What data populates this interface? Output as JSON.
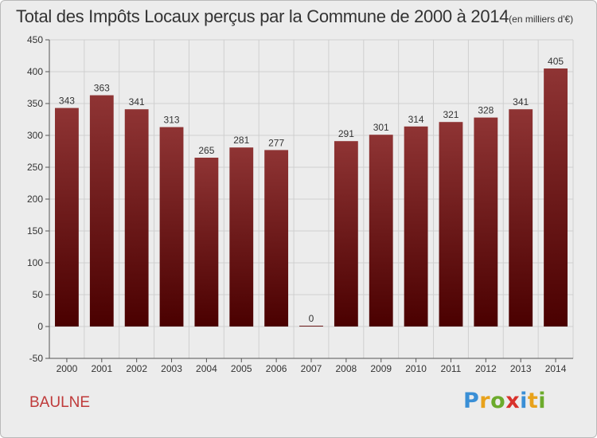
{
  "title": {
    "main": "Total des Impôts Locaux perçus par la Commune de 2000 à 2014",
    "unit": "(en milliers d'€)"
  },
  "commune": "BAULNE",
  "logo": {
    "letters": [
      {
        "ch": "P",
        "color": "#3a8fd6"
      },
      {
        "ch": "r",
        "color": "#e8a21b"
      },
      {
        "ch": "o",
        "color": "#6cab2c"
      },
      {
        "ch": "x",
        "color": "#d8322c"
      },
      {
        "ch": "i",
        "color": "#3a8fd6"
      },
      {
        "ch": "t",
        "color": "#e8a21b"
      },
      {
        "ch": "i",
        "color": "#6cab2c"
      }
    ]
  },
  "colors": {
    "bar_top": "#8f3434",
    "bar_bottom": "#4a0000",
    "grid": "#cfcfcf",
    "background": "#ececec"
  },
  "chart_data": {
    "type": "bar",
    "title": "Total des Impôts Locaux perçus par la Commune de 2000 à 2014 (en milliers d'€)",
    "categories": [
      "2000",
      "2001",
      "2002",
      "2003",
      "2004",
      "2005",
      "2006",
      "2007",
      "2008",
      "2009",
      "2010",
      "2011",
      "2012",
      "2013",
      "2014"
    ],
    "values": [
      343,
      363,
      341,
      313,
      265,
      281,
      277,
      0,
      291,
      301,
      314,
      321,
      328,
      341,
      405
    ],
    "ylim": [
      -50,
      450
    ],
    "yticks": [
      -50,
      0,
      50,
      100,
      150,
      200,
      250,
      300,
      350,
      400,
      450
    ],
    "grid": true,
    "legend": "none"
  }
}
